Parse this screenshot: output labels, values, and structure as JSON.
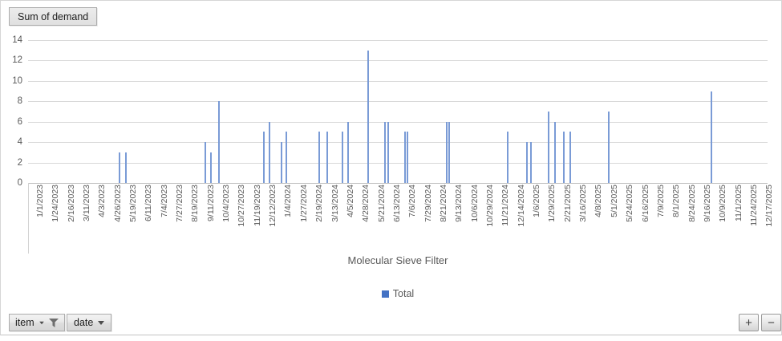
{
  "field_buttons": {
    "value_field": "Sum of demand",
    "item_field": "item",
    "date_field": "date"
  },
  "controls": {
    "expand_label": "+",
    "collapse_label": "−"
  },
  "colors": {
    "bar": "#7a9bd6",
    "legend_accent": "#4472c4",
    "axis_text": "#595959",
    "gridline": "#d9d9d9"
  },
  "chart_data": {
    "type": "bar",
    "title": "Sum of demand",
    "xlabel": "Molecular Sieve Filter",
    "ylabel": "",
    "ylim": [
      0,
      14
    ],
    "y_ticks": [
      0,
      2,
      4,
      6,
      8,
      10,
      12,
      14
    ],
    "grid": true,
    "legend_position": "bottom",
    "legend_entries": [
      "Total"
    ],
    "x_axis_start": "1/1/2023",
    "x_axis_end": "12/31/2025",
    "x_tick_interval_days": 23,
    "x_tick_labels": [
      "1/1/2023",
      "1/24/2023",
      "2/16/2023",
      "3/11/2023",
      "4/3/2023",
      "4/26/2023",
      "5/19/2023",
      "6/11/2023",
      "7/4/2023",
      "7/27/2023",
      "8/19/2023",
      "9/11/2023",
      "10/4/2023",
      "10/27/2023",
      "11/19/2023",
      "12/12/2023",
      "1/4/2024",
      "1/27/2024",
      "2/19/2024",
      "3/13/2024",
      "4/5/2024",
      "4/28/2024",
      "5/21/2024",
      "6/13/2024",
      "7/6/2024",
      "7/29/2024",
      "8/21/2024",
      "9/13/2024",
      "10/6/2024",
      "10/29/2024",
      "11/21/2024",
      "12/14/2024",
      "1/6/2025",
      "1/29/2025",
      "2/21/2025",
      "3/16/2025",
      "4/8/2025",
      "5/1/2025",
      "5/24/2025",
      "6/16/2025",
      "7/9/2025",
      "8/1/2025",
      "8/24/2025",
      "9/16/2025",
      "10/9/2025",
      "11/1/2025",
      "11/24/2025",
      "12/17/2025"
    ],
    "series": [
      {
        "name": "Total",
        "color": "#4472c4",
        "points": [
          {
            "date": "5/16/2023",
            "value": 3
          },
          {
            "date": "5/26/2023",
            "value": 3
          },
          {
            "date": "9/20/2023",
            "value": 4
          },
          {
            "date": "9/29/2023",
            "value": 3
          },
          {
            "date": "10/10/2023",
            "value": 8
          },
          {
            "date": "12/16/2023",
            "value": 5
          },
          {
            "date": "12/24/2023",
            "value": 6
          },
          {
            "date": "1/11/2024",
            "value": 4
          },
          {
            "date": "1/18/2024",
            "value": 5
          },
          {
            "date": "3/7/2024",
            "value": 5
          },
          {
            "date": "3/19/2024",
            "value": 5
          },
          {
            "date": "4/11/2024",
            "value": 5
          },
          {
            "date": "4/19/2024",
            "value": 6
          },
          {
            "date": "5/18/2024",
            "value": 13
          },
          {
            "date": "6/13/2024",
            "value": 6
          },
          {
            "date": "6/17/2024",
            "value": 6
          },
          {
            "date": "7/12/2024",
            "value": 5
          },
          {
            "date": "7/16/2024",
            "value": 5
          },
          {
            "date": "9/12/2024",
            "value": 6
          },
          {
            "date": "9/16/2024",
            "value": 6
          },
          {
            "date": "12/11/2024",
            "value": 5
          },
          {
            "date": "1/9/2025",
            "value": 4
          },
          {
            "date": "1/15/2025",
            "value": 4
          },
          {
            "date": "2/10/2025",
            "value": 7
          },
          {
            "date": "2/19/2025",
            "value": 6
          },
          {
            "date": "3/5/2025",
            "value": 5
          },
          {
            "date": "3/14/2025",
            "value": 5
          },
          {
            "date": "5/10/2025",
            "value": 7
          },
          {
            "date": "10/9/2025",
            "value": 9
          }
        ]
      }
    ]
  }
}
